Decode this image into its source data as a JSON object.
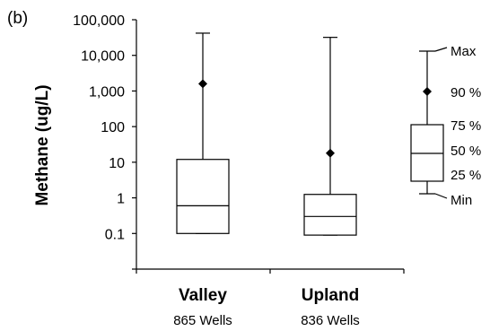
{
  "panel_label": "(b)",
  "chart_data": {
    "type": "boxplot",
    "title": "",
    "xlabel": "",
    "ylabel": "Methane (ug/L)",
    "y_scale": "log",
    "ylim": [
      0.01,
      100000
    ],
    "y_ticks": [
      0.1,
      1,
      10,
      100,
      1000,
      10000,
      100000
    ],
    "y_tick_labels": [
      "0.1",
      "1",
      "10",
      "100",
      "1,000",
      "10,000",
      "100,000"
    ],
    "grid": false,
    "categories": [
      {
        "name": "Valley",
        "sublabel": "865 Wells",
        "min": 0.1,
        "p25": 0.1,
        "median": 0.6,
        "p75": 12,
        "p90": 1600,
        "max": 42000
      },
      {
        "name": "Upland",
        "sublabel": "836 Wells",
        "min": 0.09,
        "p25": 0.09,
        "median": 0.3,
        "p75": 1.25,
        "p90": 18,
        "max": 32000
      }
    ],
    "legend": {
      "placement": "right",
      "labels": {
        "max": "Max",
        "p90": "90 %",
        "p75": "75 %",
        "median": "50 %",
        "p25": "25 %",
        "min": "Min"
      }
    }
  }
}
